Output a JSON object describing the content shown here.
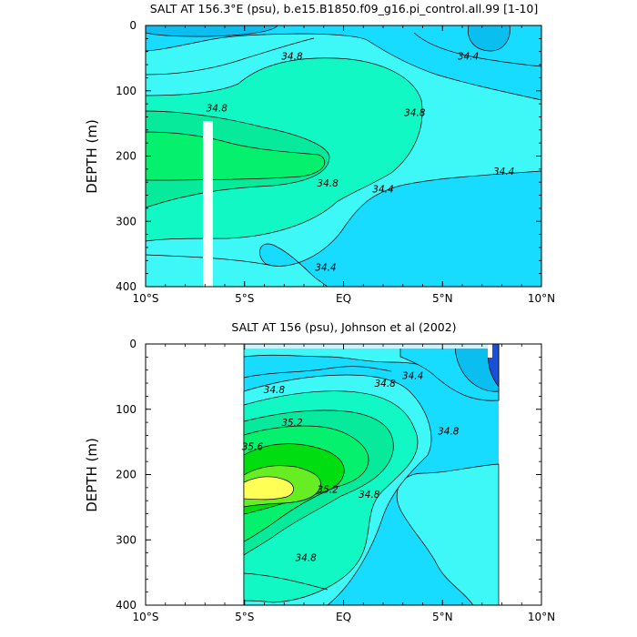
{
  "colors": {
    "levels": [
      "#0bbef0",
      "#17dbff",
      "#3ef7f7",
      "#12f8c4",
      "#07ea9b",
      "#05f06c",
      "#00dd10",
      "#66ee22",
      "#ffff55"
    ],
    "blue_core": "#1a4fd6",
    "line": "#000000",
    "background": "#ffffff"
  },
  "chart_data": [
    {
      "type": "contour",
      "title": "SALT AT 156.3°E (psu), b.e15.B1850.f09_g16.pi_control.all.99 [1-10]",
      "xlabel": "",
      "ylabel": "DEPTH (m)",
      "xlim": [
        -10,
        10
      ],
      "ylim": [
        400,
        0
      ],
      "x_ticks": [
        "10°S",
        "5°S",
        "EQ",
        "5°N",
        "10°N"
      ],
      "y_ticks": [
        "0",
        "100",
        "200",
        "300",
        "400"
      ],
      "contour_labels": [
        {
          "text": "34.8",
          "lon": -2.6,
          "depth": 47
        },
        {
          "text": "34.4",
          "lon": 6.3,
          "depth": 47
        },
        {
          "text": "34.8",
          "lon": -6.4,
          "depth": 126
        },
        {
          "text": "34.8",
          "lon": 3.6,
          "depth": 133
        },
        {
          "text": "34.8",
          "lon": -0.8,
          "depth": 241
        },
        {
          "text": "34.4",
          "lon": 2.0,
          "depth": 250
        },
        {
          "text": "34.4",
          "lon": 8.1,
          "depth": 223
        },
        {
          "text": "34.4",
          "lon": -0.9,
          "depth": 370
        }
      ],
      "missing_column_lon": [
        -6.7,
        -6.2
      ],
      "regions": [
        {
          "level": 34.2,
          "desc": "surface fresh pockets at 10S-7S and 7N-9N, 0-40 m"
        },
        {
          "level": 34.4,
          "desc": "upper layer north of 5S and deep layer north of EQ"
        },
        {
          "level": 34.6,
          "desc": "background 50-400 m"
        },
        {
          "level": 34.8,
          "desc": "tongue from 10S to 4N, 60-270 m"
        },
        {
          "level": 35.0,
          "desc": "core at 10S-1S, 120-230 m"
        },
        {
          "level": 35.2,
          "desc": "small max at 10S, 170-190 m"
        }
      ]
    },
    {
      "type": "contour",
      "title": "SALT AT 156 (psu), Johnson et al (2002)",
      "xlabel": "",
      "ylabel": "DEPTH (m)",
      "xlim": [
        -10,
        10
      ],
      "ylim": [
        400,
        0
      ],
      "data_lon_range": [
        -5,
        8
      ],
      "x_ticks": [
        "10°S",
        "5°S",
        "EQ",
        "5°N",
        "10°N"
      ],
      "y_ticks": [
        "0",
        "100",
        "200",
        "300",
        "400"
      ],
      "contour_labels": [
        {
          "text": "34.8",
          "lon": -3.5,
          "depth": 70
        },
        {
          "text": "34.4",
          "lon": 3.5,
          "depth": 48
        },
        {
          "text": "34.8",
          "lon": 2.1,
          "depth": 60
        },
        {
          "text": "35.2",
          "lon": -2.6,
          "depth": 120
        },
        {
          "text": "35.6",
          "lon": -4.6,
          "depth": 157
        },
        {
          "text": "35.2",
          "lon": -0.8,
          "depth": 222
        },
        {
          "text": "34.8",
          "lon": 5.3,
          "depth": 133
        },
        {
          "text": "34.8",
          "lon": 1.3,
          "depth": 230
        },
        {
          "text": "34.8",
          "lon": -1.9,
          "depth": 327
        }
      ],
      "regions": [
        {
          "level": 34.0,
          "desc": "surface fresh cell near 7-8N, 0-60 m"
        },
        {
          "level": 34.2,
          "desc": "surface layer 3N-8N"
        },
        {
          "level": 34.4,
          "desc": "background north of EQ and at depth"
        },
        {
          "level": 34.6,
          "desc": "upper 60 m and deep layer"
        },
        {
          "level": 34.8,
          "desc": "core region 5S-3N, 70-340 m"
        },
        {
          "level": 35.0,
          "desc": "5S-2N, 85-260 m"
        },
        {
          "level": 35.2,
          "desc": "5S-0.5S, 100-250 m"
        },
        {
          "level": 35.4,
          "desc": "5S-2.5S, 135-220 m"
        },
        {
          "level": 35.6,
          "desc": "max near 5S-3.7S, 160-200 m"
        }
      ]
    }
  ]
}
